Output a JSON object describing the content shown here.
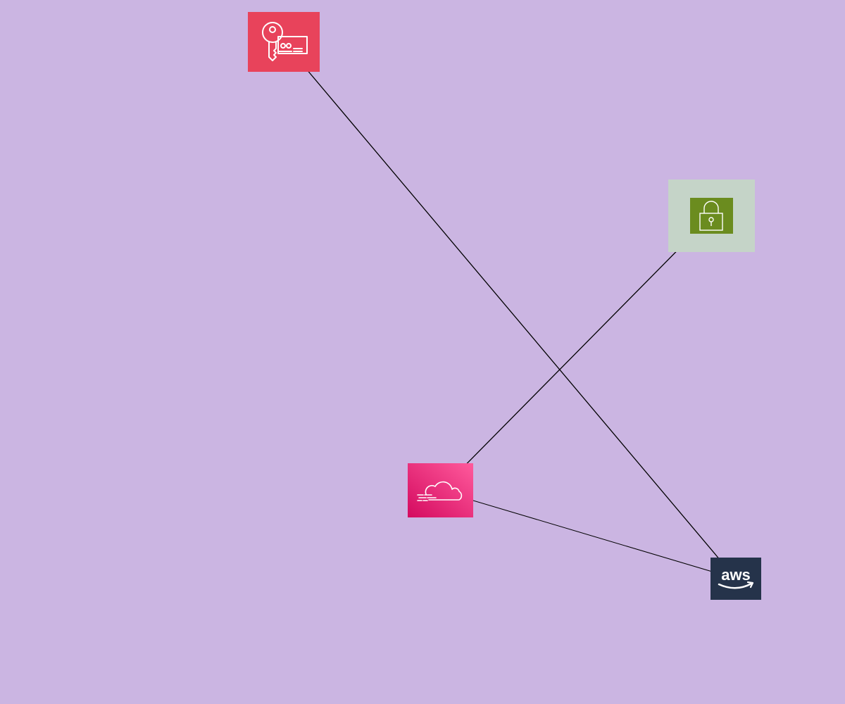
{
  "background_color": "#cbb5e2",
  "edge_color": "#000000",
  "nodes": [
    {
      "id": "key",
      "icon": "key-certificate-icon",
      "color": "#e8435b"
    },
    {
      "id": "lock",
      "icon": "padlock-icon",
      "color": "#6b8c1f",
      "halo_color": "#c5d4c8"
    },
    {
      "id": "cloud",
      "icon": "cloud-data-stream-icon",
      "color": "#e8276f"
    },
    {
      "id": "aws",
      "icon": "aws-logo-icon",
      "color": "#25334a",
      "label": "aws"
    }
  ],
  "edges": [
    {
      "from": "key",
      "to": "aws",
      "arrow": "end"
    },
    {
      "from": "cloud",
      "to": "lock",
      "arrow": "end"
    },
    {
      "from": "aws",
      "to": "cloud",
      "arrow": "end"
    }
  ]
}
